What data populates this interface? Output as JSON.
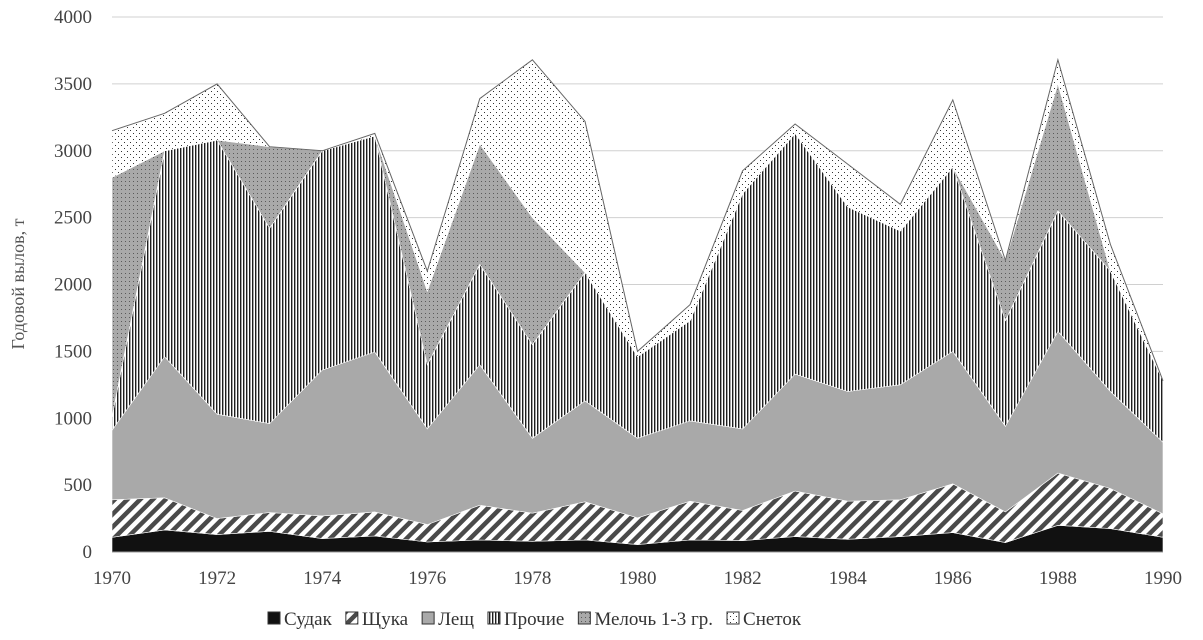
{
  "chart_data": {
    "type": "area",
    "stacked": true,
    "title": "",
    "xlabel": "",
    "ylabel": "Годовой вылов, т",
    "xlim": [
      1970,
      1990
    ],
    "ylim": [
      0,
      4000
    ],
    "x_ticks": [
      "1970",
      "1972",
      "1974",
      "1976",
      "1978",
      "1980",
      "1982",
      "1984",
      "1986",
      "1988",
      "1990"
    ],
    "y_ticks": [
      "0",
      "500",
      "1000",
      "1500",
      "2000",
      "2500",
      "3000",
      "3500",
      "4000"
    ],
    "grid": "horizontal",
    "legend_position": "bottom",
    "x": [
      1970,
      1971,
      1972,
      1973,
      1974,
      1975,
      1976,
      1977,
      1978,
      1979,
      1980,
      1981,
      1982,
      1983,
      1984,
      1985,
      1986,
      1987,
      1988,
      1989,
      1990
    ],
    "series": [
      {
        "name": "Судак",
        "pattern": "solid-black",
        "values": [
          110,
          165,
          130,
          155,
          100,
          120,
          75,
          90,
          80,
          90,
          55,
          90,
          85,
          115,
          95,
          115,
          145,
          70,
          200,
          175,
          110
        ]
      },
      {
        "name": "Щука",
        "pattern": "diagonal-hatch",
        "values": [
          280,
          240,
          120,
          140,
          170,
          180,
          130,
          260,
          210,
          285,
          200,
          290,
          225,
          340,
          285,
          275,
          365,
          230,
          390,
          300,
          175
        ]
      },
      {
        "name": "Лещ",
        "pattern": "solid-gray",
        "values": [
          520,
          1055,
          780,
          665,
          1090,
          1195,
          715,
          1050,
          560,
          755,
          595,
          600,
          610,
          875,
          820,
          860,
          990,
          640,
          1060,
          725,
          535
        ]
      },
      {
        "name": "Прочие",
        "pattern": "vertical-lines",
        "values": [
          100,
          1540,
          2050,
          1460,
          1640,
          1615,
          480,
          750,
          700,
          960,
          610,
          750,
          1760,
          1800,
          1380,
          1150,
          1380,
          790,
          900,
          900,
          460
        ]
      },
      {
        "name": "Мелочь 1-3 гр.",
        "pattern": "gray-dots",
        "values": [
          1790,
          0,
          0,
          610,
          0,
          0,
          550,
          900,
          950,
          0,
          0,
          0,
          0,
          0,
          0,
          0,
          0,
          450,
          950,
          0,
          0
        ]
      },
      {
        "name": "Снеток",
        "pattern": "sparse-dots",
        "values": [
          350,
          280,
          420,
          0,
          0,
          20,
          150,
          340,
          1180,
          1130,
          40,
          120,
          170,
          70,
          320,
          200,
          500,
          0,
          180,
          200,
          0
        ]
      }
    ]
  }
}
